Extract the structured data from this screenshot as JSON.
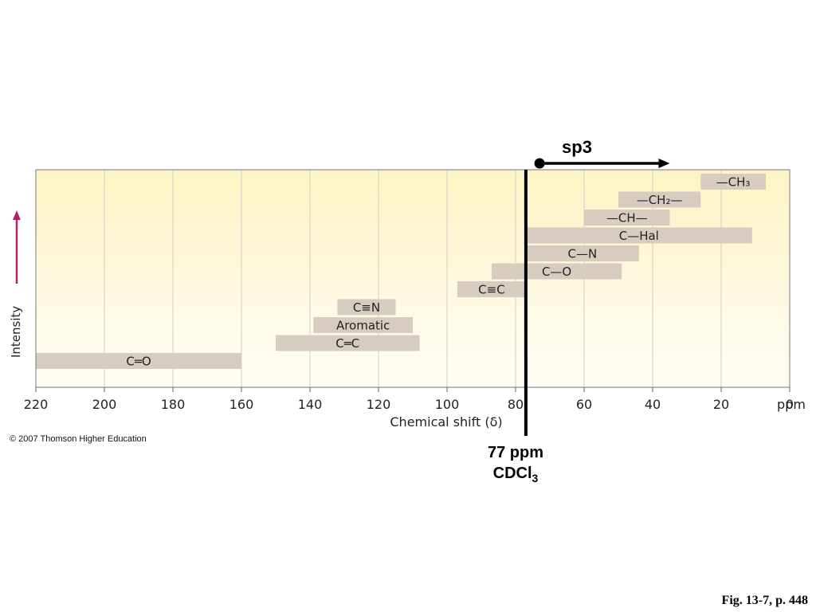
{
  "chart_data": {
    "type": "range",
    "xlabel": "Chemical shift (δ)",
    "ylabel": "Intensity",
    "x_unit": "ppm",
    "xlim": [
      220,
      0
    ],
    "xticks": [
      220,
      200,
      180,
      160,
      140,
      120,
      100,
      80,
      60,
      40,
      20,
      0
    ],
    "grid": true,
    "ranges": [
      {
        "label": "—CH₃",
        "from": 26,
        "to": 7
      },
      {
        "label": "—CH₂—",
        "from": 50,
        "to": 26
      },
      {
        "label": "—CH—",
        "from": 60,
        "to": 35
      },
      {
        "label": "C—Hal",
        "from": 77,
        "to": 11
      },
      {
        "label": "C—N",
        "from": 77,
        "to": 44
      },
      {
        "label": "C—O",
        "from": 87,
        "to": 49
      },
      {
        "label": "C≡C",
        "from": 97,
        "to": 77
      },
      {
        "label": "C≡N",
        "from": 132,
        "to": 115
      },
      {
        "label": "Aromatic",
        "from": 139,
        "to": 110
      },
      {
        "label": "C═C",
        "from": 150,
        "to": 108
      },
      {
        "label": "C═O",
        "from": 220,
        "to": 160
      }
    ],
    "reference": {
      "value": 77,
      "line1": "77 ppm",
      "line2": "CDCl",
      "line2_sub": "3"
    },
    "arrow": {
      "label": "sp3",
      "from": 73,
      "to": 35
    }
  },
  "copyright": "© 2007 Thomson Higher Education",
  "caption": "Fig. 13-7, p. 448",
  "colors": {
    "band": "#d6cdc0",
    "grid": "#d9d6cc",
    "bg_top": "#fdf3c4",
    "bg_bottom": "#fffdf6",
    "intensity_arrow": "#b0206e"
  }
}
